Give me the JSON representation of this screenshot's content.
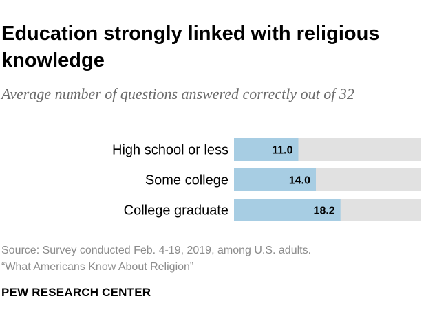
{
  "colors": {
    "bar_fill": "#a7cde3",
    "track_fill": "#e1e1e1",
    "label_text": "#000000",
    "muted_text": "#8c8c8c",
    "subtitle_text": "#6b6b6b"
  },
  "chart_data": {
    "type": "bar",
    "orientation": "horizontal",
    "title": "Education strongly linked with religious knowledge",
    "subtitle": "Average number of questions answered correctly out of 32",
    "categories": [
      "High school or less",
      "Some college",
      "College graduate"
    ],
    "values": [
      11.0,
      14.0,
      18.2
    ],
    "value_labels": [
      "11.0",
      "14.0",
      "18.2"
    ],
    "xlim": [
      0,
      32
    ],
    "xlabel": "",
    "ylabel": "",
    "grid": false,
    "legend": "none"
  },
  "footer": {
    "source_line1": "Source: Survey conducted Feb. 4-19, 2019, among U.S. adults.",
    "source_line2": "“What Americans Know About Religion”",
    "brand": "PEW RESEARCH CENTER"
  }
}
